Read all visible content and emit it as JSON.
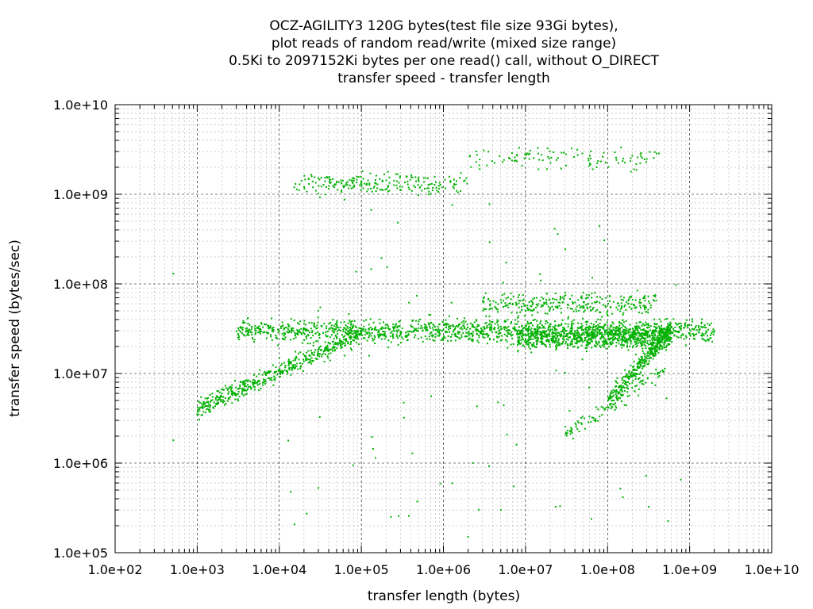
{
  "chart_data": {
    "type": "scatter",
    "title_lines": [
      "OCZ-AGILITY3 120G bytes(test file size 93Gi bytes),",
      "plot reads of random read/write (mixed size range)",
      "0.5Ki to 2097152Ki bytes per one read() call, without O_DIRECT",
      "transfer speed - transfer length"
    ],
    "xlabel": "transfer length (bytes)",
    "ylabel": "transfer speed (bytes/sec)",
    "x_scale": "log",
    "y_scale": "log",
    "xlim": [
      100,
      10000000000
    ],
    "ylim": [
      100000,
      10000000000
    ],
    "x_ticks": [
      "1.0e+02",
      "1.0e+03",
      "1.0e+04",
      "1.0e+05",
      "1.0e+06",
      "1.0e+07",
      "1.0e+08",
      "1.0e+09",
      "1.0e+10"
    ],
    "y_ticks": [
      "1.0e+05",
      "1.0e+06",
      "1.0e+07",
      "1.0e+08",
      "1.0e+09",
      "1.0e+10"
    ],
    "grid": true,
    "point_color": "#00b000",
    "series": [
      {
        "clusters": [
          {
            "x_range": [
              3000,
              2000000000
            ],
            "y_center": 30000000,
            "count": 1400
          },
          {
            "x_range": [
              1000,
              100000
            ],
            "y_from": 4000000,
            "y_to": 28000000,
            "count": 500
          },
          {
            "x_range": [
              15000,
              2000000
            ],
            "y_center": 1300000000,
            "count": 220
          },
          {
            "x_range": [
              2000000,
              500000000
            ],
            "y_center": 2500000000,
            "count": 110
          },
          {
            "x_range": [
              8000000,
              600000000
            ],
            "y_center": 25000000,
            "count": 700
          },
          {
            "x_range": [
              3000000,
              400000000
            ],
            "y_center": 60000000,
            "count": 300
          },
          {
            "x_range": [
              100000000,
              600000000
            ],
            "y_from": 5000000,
            "y_to": 30000000,
            "count": 300
          },
          {
            "x_range": [
              30000000,
              500000000
            ],
            "y_from": 2000000,
            "y_to": 12000000,
            "count": 120
          }
        ],
        "sample_points": [
          {
            "x": 512,
            "y": 1800000
          },
          {
            "x": 512,
            "y": 130000000
          },
          {
            "x": 1000,
            "y": 3500000
          },
          {
            "x": 2000,
            "y": 6000000
          },
          {
            "x": 10000,
            "y": 15000000
          },
          {
            "x": 50000,
            "y": 25000000
          },
          {
            "x": 100000,
            "y": 28000000
          },
          {
            "x": 1000000,
            "y": 31000000
          },
          {
            "x": 100000000,
            "y": 33000000
          },
          {
            "x": 2000000000,
            "y": 30000000
          },
          {
            "x": 100000,
            "y": 1400000000
          },
          {
            "x": 10000000,
            "y": 2800000000
          },
          {
            "x": 200000000,
            "y": 2700000000
          },
          {
            "x": 2000000,
            "y": 150000
          },
          {
            "x": 5000000,
            "y": 300000
          }
        ]
      }
    ]
  }
}
